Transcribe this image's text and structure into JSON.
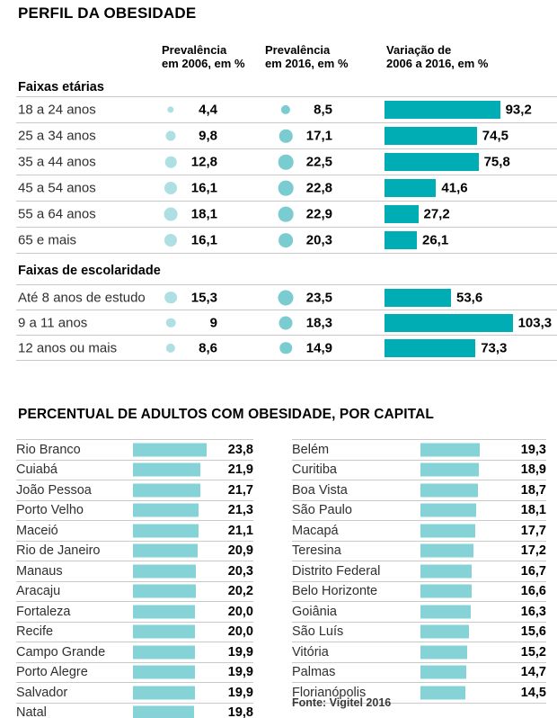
{
  "colors": {
    "variation_bar": "#00adb5",
    "bubble_2006": "#aedfe2",
    "bubble_2016": "#7accd1",
    "capital_bar": "#85d3d7",
    "separator": "#c9c9c9"
  },
  "chart_data": [
    {
      "type": "table",
      "title": "PERFIL DA OBESIDADE",
      "column_headers": [
        "Prevalência\nem 2006, em %",
        "Prevalência\nem 2016, em %",
        "Variação de\n2006 a 2016, em %"
      ],
      "groups": [
        {
          "label": "Faixas etárias",
          "rows": [
            {
              "label": "18 a 24 anos",
              "prev_2006": 4.4,
              "prev_2006_text": "4,4",
              "prev_2016": 8.5,
              "prev_2016_text": "8,5",
              "variation": 93.2,
              "variation_text": "93,2"
            },
            {
              "label": "25 a 34 anos",
              "prev_2006": 9.8,
              "prev_2006_text": "9,8",
              "prev_2016": 17.1,
              "prev_2016_text": "17,1",
              "variation": 74.5,
              "variation_text": "74,5"
            },
            {
              "label": "35 a 44 anos",
              "prev_2006": 12.8,
              "prev_2006_text": "12,8",
              "prev_2016": 22.5,
              "prev_2016_text": "22,5",
              "variation": 75.8,
              "variation_text": "75,8"
            },
            {
              "label": "45 a 54 anos",
              "prev_2006": 16.1,
              "prev_2006_text": "16,1",
              "prev_2016": 22.8,
              "prev_2016_text": "22,8",
              "variation": 41.6,
              "variation_text": "41,6"
            },
            {
              "label": "55 a 64 anos",
              "prev_2006": 18.1,
              "prev_2006_text": "18,1",
              "prev_2016": 22.9,
              "prev_2016_text": "22,9",
              "variation": 27.2,
              "variation_text": "27,2"
            },
            {
              "label": "65 e mais",
              "prev_2006": 16.1,
              "prev_2006_text": "16,1",
              "prev_2016": 20.3,
              "prev_2016_text": "20,3",
              "variation": 26.1,
              "variation_text": "26,1"
            }
          ]
        },
        {
          "label": "Faixas de escolaridade",
          "rows": [
            {
              "label": "Até 8 anos de estudo",
              "prev_2006": 15.3,
              "prev_2006_text": "15,3",
              "prev_2016": 23.5,
              "prev_2016_text": "23,5",
              "variation": 53.6,
              "variation_text": "53,6"
            },
            {
              "label": "9 a 11 anos",
              "prev_2006": 9,
              "prev_2006_text": "9",
              "prev_2016": 18.3,
              "prev_2016_text": "18,3",
              "variation": 103.3,
              "variation_text": "103,3"
            },
            {
              "label": "12 anos ou mais",
              "prev_2006": 8.6,
              "prev_2006_text": "8,6",
              "prev_2016": 14.9,
              "prev_2016_text": "14,9",
              "variation": 73.3,
              "variation_text": "73,3"
            }
          ]
        }
      ]
    },
    {
      "type": "bar",
      "title": "PERCENTUAL DE ADULTOS COM OBESIDADE, POR CAPITAL",
      "source": "Fonte: Vigitel 2016",
      "columns": [
        [
          {
            "name": "Rio Branco",
            "value": 23.8,
            "value_text": "23,8"
          },
          {
            "name": "Cuiabá",
            "value": 21.9,
            "value_text": "21,9"
          },
          {
            "name": "João Pessoa",
            "value": 21.7,
            "value_text": "21,7"
          },
          {
            "name": "Porto Velho",
            "value": 21.3,
            "value_text": "21,3"
          },
          {
            "name": "Maceió",
            "value": 21.1,
            "value_text": "21,1"
          },
          {
            "name": "Rio de Janeiro",
            "value": 20.9,
            "value_text": "20,9"
          },
          {
            "name": "Manaus",
            "value": 20.3,
            "value_text": "20,3"
          },
          {
            "name": "Aracaju",
            "value": 20.2,
            "value_text": "20,2"
          },
          {
            "name": "Fortaleza",
            "value": 20.0,
            "value_text": "20,0"
          },
          {
            "name": "Recife",
            "value": 20.0,
            "value_text": "20,0"
          },
          {
            "name": "Campo Grande",
            "value": 19.9,
            "value_text": "19,9"
          },
          {
            "name": "Porto Alegre",
            "value": 19.9,
            "value_text": "19,9"
          },
          {
            "name": "Salvador",
            "value": 19.9,
            "value_text": "19,9"
          },
          {
            "name": "Natal",
            "value": 19.8,
            "value_text": "19,8"
          }
        ],
        [
          {
            "name": "Belém",
            "value": 19.3,
            "value_text": "19,3"
          },
          {
            "name": "Curitiba",
            "value": 18.9,
            "value_text": "18,9"
          },
          {
            "name": "Boa Vista",
            "value": 18.7,
            "value_text": "18,7"
          },
          {
            "name": "São Paulo",
            "value": 18.1,
            "value_text": "18,1"
          },
          {
            "name": "Macapá",
            "value": 17.7,
            "value_text": "17,7"
          },
          {
            "name": "Teresina",
            "value": 17.2,
            "value_text": "17,2"
          },
          {
            "name": "Distrito Federal",
            "value": 16.7,
            "value_text": "16,7"
          },
          {
            "name": "Belo Horizonte",
            "value": 16.6,
            "value_text": "16,6"
          },
          {
            "name": "Goiânia",
            "value": 16.3,
            "value_text": "16,3"
          },
          {
            "name": "São Luís",
            "value": 15.6,
            "value_text": "15,6"
          },
          {
            "name": "Vitória",
            "value": 15.2,
            "value_text": "15,2"
          },
          {
            "name": "Palmas",
            "value": 14.7,
            "value_text": "14,7"
          },
          {
            "name": "Florianópolis",
            "value": 14.5,
            "value_text": "14,5"
          }
        ]
      ]
    }
  ]
}
